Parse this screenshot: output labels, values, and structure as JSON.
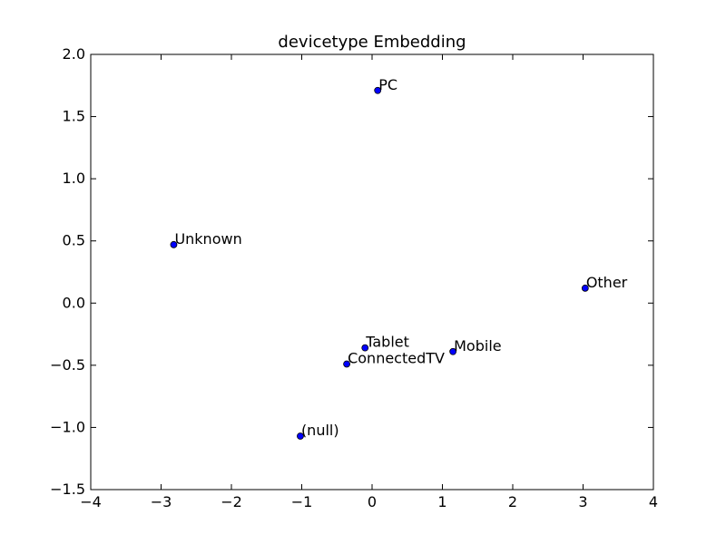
{
  "chart_data": {
    "type": "scatter",
    "title": "devicetype Embedding",
    "xlabel": "",
    "ylabel": "",
    "xlim": [
      -4,
      4
    ],
    "ylim": [
      -1.5,
      2.0
    ],
    "x_ticks": [
      -4,
      -3,
      -2,
      -1,
      0,
      1,
      2,
      3,
      4
    ],
    "y_ticks": [
      -1.5,
      -1.0,
      -0.5,
      0.0,
      0.5,
      1.0,
      1.5,
      2.0
    ],
    "x_tick_labels": [
      "−4",
      "−3",
      "−2",
      "−1",
      "0",
      "1",
      "2",
      "3",
      "4"
    ],
    "y_tick_labels": [
      "−1.5",
      "−1.0",
      "−0.5",
      "0.0",
      "0.5",
      "1.0",
      "1.5",
      "2.0"
    ],
    "grid": false,
    "legend": "none",
    "point_color": "#0000ff",
    "points": [
      {
        "label": "PC",
        "x": 0.08,
        "y": 1.71
      },
      {
        "label": "Unknown",
        "x": -2.82,
        "y": 0.47
      },
      {
        "label": "Other",
        "x": 3.03,
        "y": 0.12
      },
      {
        "label": "Tablet",
        "x": -0.1,
        "y": -0.36
      },
      {
        "label": "Mobile",
        "x": 1.15,
        "y": -0.39
      },
      {
        "label": "ConnectedTV",
        "x": -0.36,
        "y": -0.49
      },
      {
        "label": "(null)",
        "x": -1.02,
        "y": -1.07
      }
    ]
  }
}
